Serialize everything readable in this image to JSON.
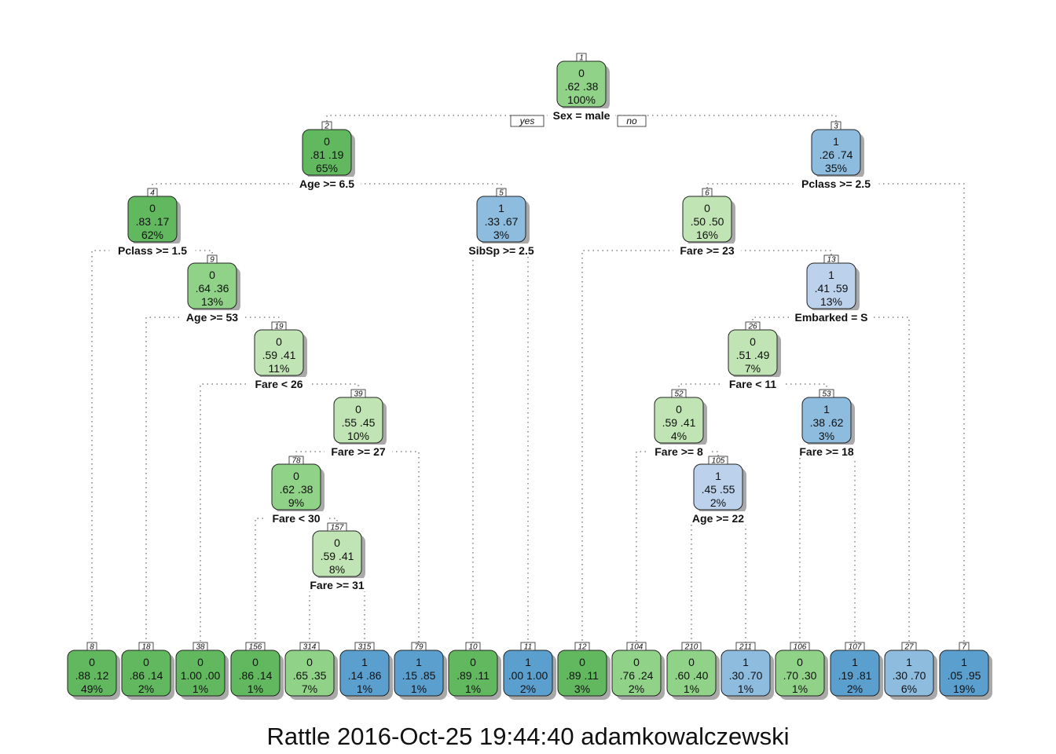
{
  "caption": "Rattle 2016-Oct-25 19:44:40 adamkowalczewski",
  "yes_label": "yes",
  "no_label": "no",
  "colors": {
    "green_1": "#c0e4b3",
    "green_2": "#90d288",
    "green_3": "#62b85f",
    "blue_1": "#bcd1ec",
    "blue_2": "#8dbcdf",
    "blue_3": "#5b9fcf"
  },
  "nodes": [
    {
      "id": "1",
      "cls": "0",
      "probs": ".62  .38",
      "pct": "100%",
      "split": "Sex = male",
      "color": "green_2"
    },
    {
      "id": "2",
      "cls": "0",
      "probs": ".81  .19",
      "pct": "65%",
      "split": "Age >= 6.5",
      "color": "green_3"
    },
    {
      "id": "3",
      "cls": "1",
      "probs": ".26  .74",
      "pct": "35%",
      "split": "Pclass >= 2.5",
      "color": "blue_2"
    },
    {
      "id": "4",
      "cls": "0",
      "probs": ".83  .17",
      "pct": "62%",
      "split": "Pclass >= 1.5",
      "color": "green_3"
    },
    {
      "id": "5",
      "cls": "1",
      "probs": ".33  .67",
      "pct": "3%",
      "split": "SibSp >= 2.5",
      "color": "blue_2"
    },
    {
      "id": "6",
      "cls": "0",
      "probs": ".50  .50",
      "pct": "16%",
      "split": "Fare >= 23",
      "color": "green_1"
    },
    {
      "id": "9",
      "cls": "0",
      "probs": ".64  .36",
      "pct": "13%",
      "split": "Age >= 53",
      "color": "green_2"
    },
    {
      "id": "13",
      "cls": "1",
      "probs": ".41  .59",
      "pct": "13%",
      "split": "Embarked = S",
      "color": "blue_1"
    },
    {
      "id": "19",
      "cls": "0",
      "probs": ".59  .41",
      "pct": "11%",
      "split": "Fare < 26",
      "color": "green_1"
    },
    {
      "id": "26",
      "cls": "0",
      "probs": ".51  .49",
      "pct": "7%",
      "split": "Fare < 11",
      "color": "green_1"
    },
    {
      "id": "39",
      "cls": "0",
      "probs": ".55  .45",
      "pct": "10%",
      "split": "Fare >= 27",
      "color": "green_1"
    },
    {
      "id": "52",
      "cls": "0",
      "probs": ".59  .41",
      "pct": "4%",
      "split": "Fare >= 8",
      "color": "green_1"
    },
    {
      "id": "53",
      "cls": "1",
      "probs": ".38  .62",
      "pct": "3%",
      "split": "Fare >= 18",
      "color": "blue_2"
    },
    {
      "id": "78",
      "cls": "0",
      "probs": ".62  .38",
      "pct": "9%",
      "split": "Fare < 30",
      "color": "green_2"
    },
    {
      "id": "105",
      "cls": "1",
      "probs": ".45  .55",
      "pct": "2%",
      "split": "Age >= 22",
      "color": "blue_1"
    },
    {
      "id": "157",
      "cls": "0",
      "probs": ".59  .41",
      "pct": "8%",
      "split": "Fare >= 31",
      "color": "green_1"
    },
    {
      "id": "8",
      "cls": "0",
      "probs": ".88  .12",
      "pct": "49%",
      "split": "",
      "color": "green_3"
    },
    {
      "id": "18",
      "cls": "0",
      "probs": ".86  .14",
      "pct": "2%",
      "split": "",
      "color": "green_3"
    },
    {
      "id": "38",
      "cls": "0",
      "probs": "1.00  .00",
      "pct": "1%",
      "split": "",
      "color": "green_3"
    },
    {
      "id": "156",
      "cls": "0",
      "probs": ".86  .14",
      "pct": "1%",
      "split": "",
      "color": "green_3"
    },
    {
      "id": "314",
      "cls": "0",
      "probs": ".65  .35",
      "pct": "7%",
      "split": "",
      "color": "green_2"
    },
    {
      "id": "315",
      "cls": "1",
      "probs": ".14  .86",
      "pct": "1%",
      "split": "",
      "color": "blue_3"
    },
    {
      "id": "79",
      "cls": "1",
      "probs": ".15  .85",
      "pct": "1%",
      "split": "",
      "color": "blue_3"
    },
    {
      "id": "10",
      "cls": "0",
      "probs": ".89  .11",
      "pct": "1%",
      "split": "",
      "color": "green_3"
    },
    {
      "id": "11",
      "cls": "1",
      "probs": ".00  1.00",
      "pct": "2%",
      "split": "",
      "color": "blue_3"
    },
    {
      "id": "12",
      "cls": "0",
      "probs": ".89  .11",
      "pct": "3%",
      "split": "",
      "color": "green_3"
    },
    {
      "id": "104",
      "cls": "0",
      "probs": ".76  .24",
      "pct": "2%",
      "split": "",
      "color": "green_2"
    },
    {
      "id": "210",
      "cls": "0",
      "probs": ".60  .40",
      "pct": "1%",
      "split": "",
      "color": "green_2"
    },
    {
      "id": "211",
      "cls": "1",
      "probs": ".30  .70",
      "pct": "1%",
      "split": "",
      "color": "blue_2"
    },
    {
      "id": "106",
      "cls": "0",
      "probs": ".70  .30",
      "pct": "1%",
      "split": "",
      "color": "green_2"
    },
    {
      "id": "107",
      "cls": "1",
      "probs": ".19  .81",
      "pct": "2%",
      "split": "",
      "color": "blue_3"
    },
    {
      "id": "27",
      "cls": "1",
      "probs": ".30  .70",
      "pct": "6%",
      "split": "",
      "color": "blue_2"
    },
    {
      "id": "7",
      "cls": "1",
      "probs": ".05  .95",
      "pct": "19%",
      "split": "",
      "color": "blue_3"
    }
  ],
  "edges": [
    [
      "1",
      "2"
    ],
    [
      "1",
      "3"
    ],
    [
      "2",
      "4"
    ],
    [
      "2",
      "5"
    ],
    [
      "3",
      "6"
    ],
    [
      "3",
      "7"
    ],
    [
      "4",
      "8"
    ],
    [
      "4",
      "9"
    ],
    [
      "5",
      "10"
    ],
    [
      "5",
      "11"
    ],
    [
      "6",
      "12"
    ],
    [
      "6",
      "13"
    ],
    [
      "9",
      "18"
    ],
    [
      "9",
      "19"
    ],
    [
      "13",
      "26"
    ],
    [
      "13",
      "27"
    ],
    [
      "19",
      "38"
    ],
    [
      "19",
      "39"
    ],
    [
      "26",
      "52"
    ],
    [
      "26",
      "53"
    ],
    [
      "39",
      "78"
    ],
    [
      "39",
      "79"
    ],
    [
      "52",
      "104"
    ],
    [
      "52",
      "105"
    ],
    [
      "53",
      "106"
    ],
    [
      "53",
      "107"
    ],
    [
      "78",
      "156"
    ],
    [
      "78",
      "157"
    ],
    [
      "105",
      "210"
    ],
    [
      "105",
      "211"
    ],
    [
      "157",
      "314"
    ],
    [
      "157",
      "315"
    ]
  ]
}
